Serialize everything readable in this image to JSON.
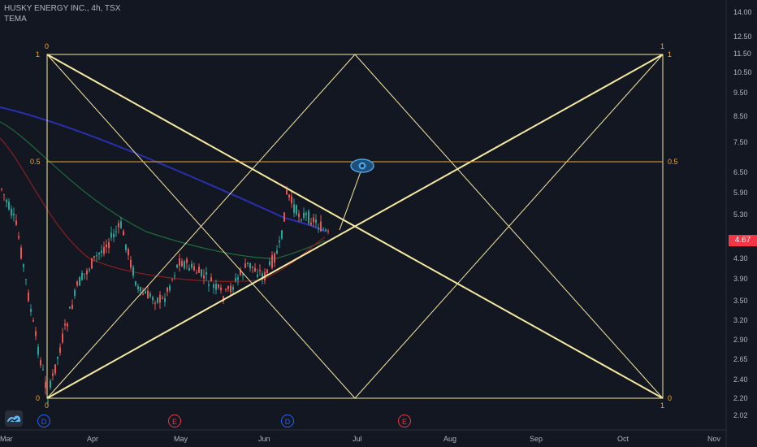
{
  "header": {
    "symbol_line": "HUSKY ENERGY INC., 4h, TSX",
    "indicator": "TEMA"
  },
  "price_axis": {
    "ticks": [
      "14.00",
      "12.50",
      "11.50",
      "10.50",
      "9.50",
      "8.50",
      "7.50",
      "6.50",
      "5.90",
      "5.30",
      "4.30",
      "3.90",
      "3.50",
      "3.20",
      "2.90",
      "2.65",
      "2.40",
      "2.20",
      "2.02"
    ]
  },
  "last_price": "4.67",
  "time_axis": {
    "labels": [
      "Mar",
      "Apr",
      "May",
      "Jun",
      "Jul",
      "Aug",
      "Sep",
      "Oct",
      "Nov"
    ]
  },
  "events": [
    {
      "label": "D",
      "kind": "dividend"
    },
    {
      "label": "E",
      "kind": "earnings"
    },
    {
      "label": "D",
      "kind": "dividend"
    },
    {
      "label": "E",
      "kind": "earnings"
    }
  ],
  "gann_labels": {
    "top_left_level": "0",
    "top_right_level": "1",
    "left_one": "1",
    "right_one": "1",
    "half_left": "0.5",
    "half_right": "0.5",
    "bottom_left": "0",
    "bottom_left_sub": "0",
    "bottom_right": "0",
    "bottom_right_sub": "1"
  },
  "colors": {
    "background": "#131722",
    "gann": "#f7e8a0",
    "gann_half": "#f0a830",
    "up": "#26a69a",
    "down": "#ef5350",
    "last_price": "#f23645",
    "dividend": "#2962ff",
    "earnings": "#f23645",
    "ma_blue": "#2a2fb0",
    "ma_green": "#1f6b3a",
    "ma_red": "#8a1f1f"
  },
  "icons": [
    "eye-icon",
    "tradingview-logo-icon"
  ],
  "chart_data": {
    "type": "candlestick",
    "title": "HUSKY ENERGY INC., 4h, TSX",
    "x_axis": [
      "Mar",
      "Apr",
      "May",
      "Jun",
      "Jul",
      "Aug",
      "Sep",
      "Oct",
      "Nov"
    ],
    "y_range": [
      2.0,
      14.0
    ],
    "series_notes": "price falls from ~6.3 in early March to low ~2.2 mid-March, recovers to ~5.9 early June, last 4.67",
    "key_points": [
      {
        "x": "early Mar",
        "y": 6.3
      },
      {
        "x": "mid Mar",
        "y": 2.2
      },
      {
        "x": "early Apr",
        "y": 4.9
      },
      {
        "x": "mid Apr",
        "y": 3.6
      },
      {
        "x": "late Apr",
        "y": 4.4
      },
      {
        "x": "late May",
        "y": 3.8
      },
      {
        "x": "early Jun",
        "y": 5.9
      },
      {
        "x": "mid Jun",
        "y": 4.67
      }
    ],
    "last": 4.67
  }
}
